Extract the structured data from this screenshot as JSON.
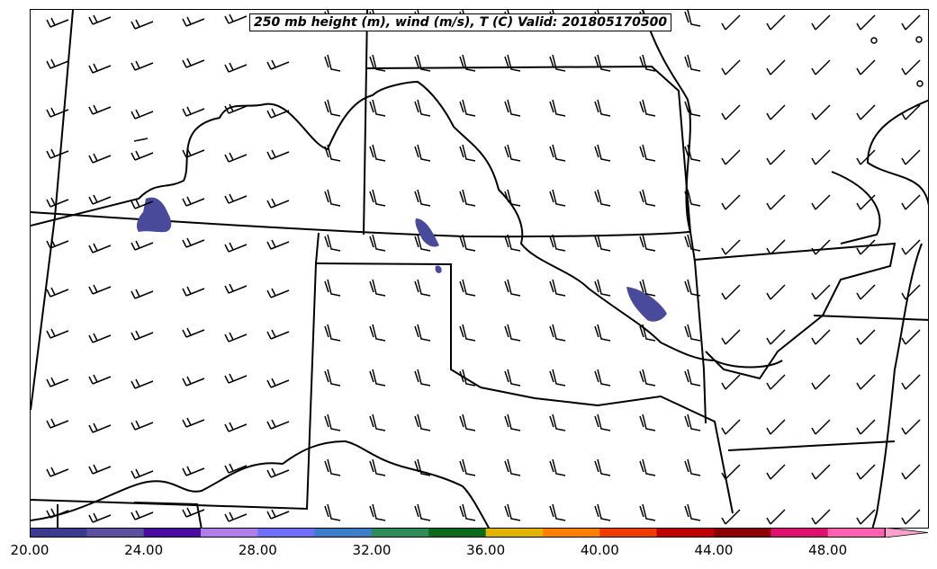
{
  "title": "250 mb height (m), wind (m/s), T (C) Valid: 201805170500",
  "colorbar": {
    "tick_labels": [
      "20.00",
      "24.00",
      "28.00",
      "32.00",
      "36.00",
      "40.00",
      "44.00",
      "48.00"
    ],
    "colors": [
      "#3b3b8f",
      "#5b4f9f",
      "#4b0aa0",
      "#b07ee8",
      "#6e6ef8",
      "#3a7ecb",
      "#2e8b57",
      "#0b6b1a",
      "#e0b400",
      "#ff8000",
      "#f03a00",
      "#c00000",
      "#8b0000",
      "#e0106f",
      "#ff60b0",
      "#ffa0d0"
    ],
    "extend": "max"
  },
  "temperature_fill_color": "#4a4a9a",
  "wind_barbs": "present"
}
